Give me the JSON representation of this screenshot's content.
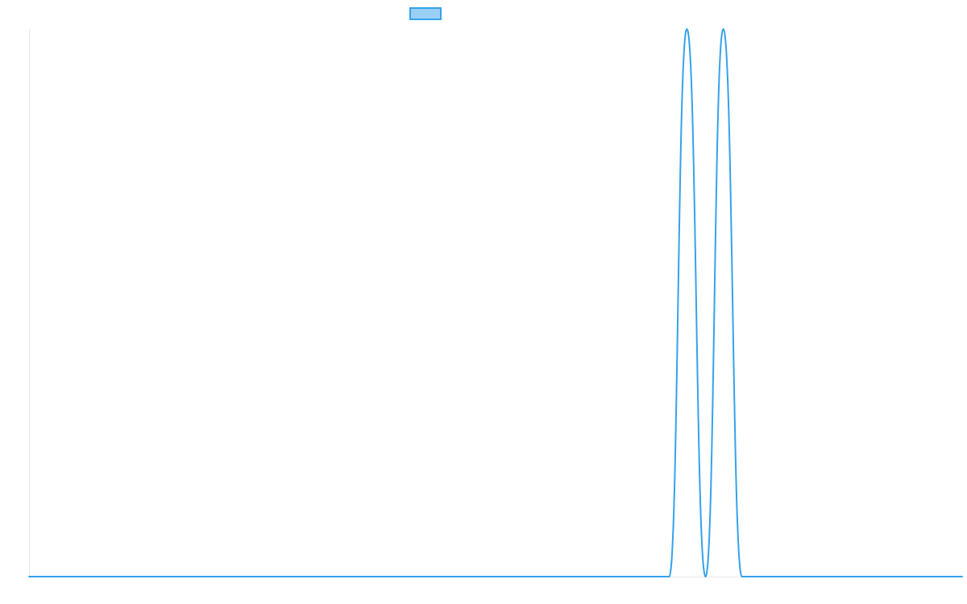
{
  "chart_data": {
    "type": "line",
    "legend": {
      "placement": "top-center",
      "entries": [
        {
          "label": "",
          "color": "#36a2eb",
          "fill_color": "#9ad0f5"
        }
      ]
    },
    "grid": false,
    "xlim": [
      0,
      1
    ],
    "ylim": [
      0,
      1
    ],
    "series": [
      {
        "color": "#36a2eb",
        "x": [
          0.0,
          0.686,
          0.705,
          0.725,
          0.744,
          0.764,
          0.783,
          0.803,
          1.0
        ],
        "y": [
          0,
          0,
          1,
          0,
          1,
          0,
          0,
          0,
          0
        ]
      }
    ]
  }
}
